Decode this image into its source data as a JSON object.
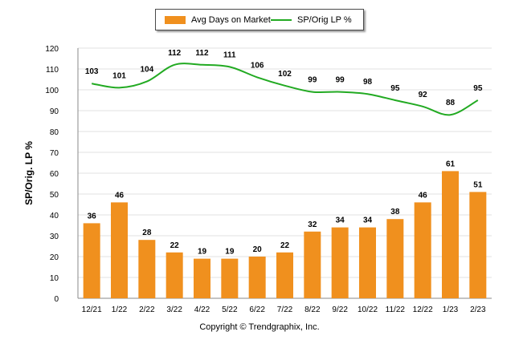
{
  "chart_data": {
    "type": "bar",
    "categories": [
      "12/21",
      "1/22",
      "2/22",
      "3/22",
      "4/22",
      "5/22",
      "6/22",
      "7/22",
      "8/22",
      "9/22",
      "10/22",
      "11/22",
      "12/22",
      "1/23",
      "2/23"
    ],
    "series": [
      {
        "name": "Avg Days on Market",
        "type": "bar",
        "color": "#f0901e",
        "values": [
          36,
          46,
          28,
          22,
          19,
          19,
          20,
          22,
          32,
          34,
          34,
          38,
          46,
          61,
          51
        ]
      },
      {
        "name": "SP/Orig LP %",
        "type": "line",
        "color": "#22aa22",
        "values": [
          103,
          101,
          104,
          112,
          112,
          111,
          106,
          102,
          99,
          99,
          98,
          95,
          92,
          88,
          95
        ]
      }
    ],
    "ylabel": "SP/Orig. LP %",
    "ylim": [
      0,
      120
    ],
    "yticks": [
      0,
      10,
      20,
      30,
      40,
      50,
      60,
      70,
      80,
      90,
      100,
      110,
      120
    ],
    "grid": true,
    "legend": "top"
  },
  "footer": {
    "copyright": "Copyright © Trendgraphix, Inc."
  }
}
